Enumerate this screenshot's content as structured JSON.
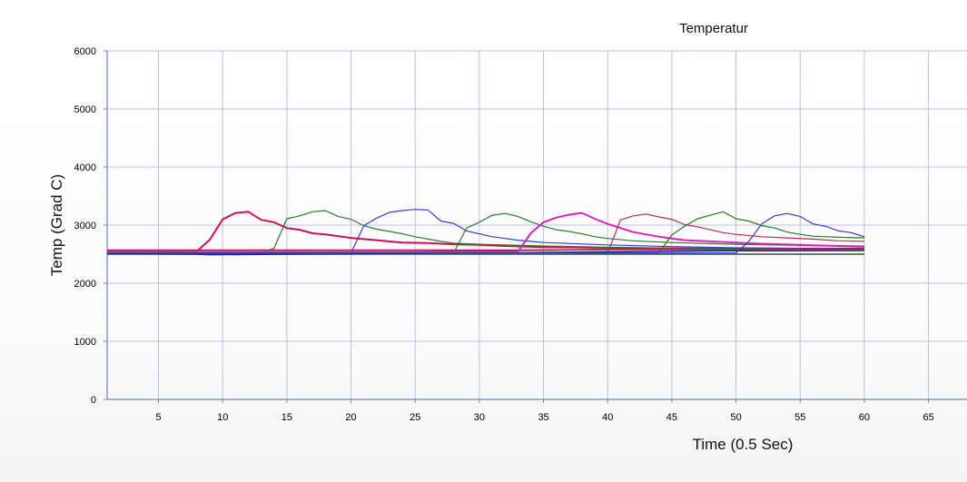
{
  "chart_data": {
    "type": "line",
    "title": "Temperatur",
    "xlabel": "Time (0.5 Sec)",
    "ylabel": "Temp (Grad C)",
    "xlim": [
      1,
      68
    ],
    "ylim": [
      0,
      6000
    ],
    "x_ticks": [
      5,
      10,
      15,
      20,
      25,
      30,
      35,
      40,
      45,
      50,
      55,
      60,
      65
    ],
    "y_ticks": [
      0,
      1000,
      2000,
      3000,
      4000,
      5000,
      6000
    ],
    "grid": true,
    "legend": "none",
    "series": [
      {
        "color": "#2f4f4f",
        "width": 1.5,
        "points": [
          [
            1,
            2500
          ],
          [
            60,
            2500
          ]
        ]
      },
      {
        "color": "#1f1f8f",
        "width": 1.5,
        "points": [
          [
            1,
            2510
          ],
          [
            8,
            2500
          ],
          [
            9,
            2490
          ],
          [
            15,
            2500
          ],
          [
            21,
            2510
          ],
          [
            30,
            2520
          ],
          [
            40,
            2540
          ],
          [
            50,
            2560
          ],
          [
            60,
            2560
          ]
        ]
      },
      {
        "color": "#6a2040",
        "width": 1.5,
        "points": [
          [
            1,
            2520
          ],
          [
            20,
            2530
          ],
          [
            30,
            2560
          ],
          [
            40,
            2580
          ],
          [
            50,
            2580
          ],
          [
            60,
            2560
          ]
        ]
      },
      {
        "color": "#cc1144",
        "width": 1.5,
        "points": [
          [
            1,
            2570
          ],
          [
            20,
            2570
          ],
          [
            33,
            2570
          ],
          [
            40,
            2580
          ],
          [
            50,
            2600
          ],
          [
            60,
            2600
          ]
        ]
      },
      {
        "color": "#d0104c",
        "width": 2,
        "points": [
          [
            1,
            2550
          ],
          [
            8,
            2550
          ],
          [
            9,
            2750
          ],
          [
            10,
            3100
          ],
          [
            11,
            3210
          ],
          [
            12,
            3230
          ],
          [
            13,
            3090
          ],
          [
            14,
            3050
          ],
          [
            15,
            2950
          ],
          [
            16,
            2920
          ],
          [
            17,
            2860
          ],
          [
            18,
            2840
          ],
          [
            20,
            2780
          ],
          [
            22,
            2740
          ],
          [
            24,
            2700
          ],
          [
            26,
            2690
          ],
          [
            28,
            2670
          ],
          [
            30,
            2660
          ],
          [
            32,
            2640
          ],
          [
            35,
            2620
          ],
          [
            40,
            2610
          ],
          [
            45,
            2600
          ],
          [
            50,
            2590
          ],
          [
            55,
            2580
          ],
          [
            60,
            2570
          ]
        ]
      },
      {
        "color": "#2a7a2a",
        "width": 1.2,
        "points": [
          [
            1,
            2520
          ],
          [
            13,
            2520
          ],
          [
            14,
            2600
          ],
          [
            15,
            3110
          ],
          [
            16,
            3160
          ],
          [
            17,
            3230
          ],
          [
            18,
            3250
          ],
          [
            19,
            3150
          ],
          [
            20,
            3100
          ],
          [
            21,
            2990
          ],
          [
            22,
            2930
          ],
          [
            23,
            2890
          ],
          [
            24,
            2850
          ],
          [
            25,
            2800
          ],
          [
            26,
            2760
          ],
          [
            27,
            2720
          ],
          [
            28,
            2690
          ],
          [
            30,
            2670
          ],
          [
            35,
            2640
          ],
          [
            40,
            2620
          ],
          [
            45,
            2600
          ],
          [
            50,
            2580
          ],
          [
            55,
            2570
          ],
          [
            60,
            2560
          ]
        ]
      },
      {
        "color": "#3a3ac8",
        "width": 1.2,
        "points": [
          [
            1,
            2520
          ],
          [
            20,
            2520
          ],
          [
            21,
            2990
          ],
          [
            22,
            3120
          ],
          [
            23,
            3220
          ],
          [
            24,
            3250
          ],
          [
            25,
            3270
          ],
          [
            26,
            3260
          ],
          [
            27,
            3070
          ],
          [
            28,
            3030
          ],
          [
            29,
            2900
          ],
          [
            30,
            2850
          ],
          [
            31,
            2800
          ],
          [
            32,
            2770
          ],
          [
            33,
            2740
          ],
          [
            34,
            2720
          ],
          [
            35,
            2700
          ],
          [
            40,
            2660
          ],
          [
            45,
            2630
          ],
          [
            50,
            2610
          ],
          [
            55,
            2600
          ],
          [
            60,
            2590
          ]
        ]
      },
      {
        "color": "#2a7a2a",
        "width": 1.2,
        "points": [
          [
            1,
            2520
          ],
          [
            28,
            2520
          ],
          [
            29,
            2950
          ],
          [
            30,
            3050
          ],
          [
            31,
            3170
          ],
          [
            32,
            3200
          ],
          [
            33,
            3150
          ],
          [
            34,
            3060
          ],
          [
            35,
            2980
          ],
          [
            36,
            2920
          ],
          [
            37,
            2890
          ],
          [
            38,
            2850
          ],
          [
            39,
            2800
          ],
          [
            40,
            2770
          ],
          [
            42,
            2730
          ],
          [
            45,
            2700
          ],
          [
            50,
            2670
          ],
          [
            55,
            2650
          ],
          [
            60,
            2640
          ]
        ]
      },
      {
        "color": "#dd22bb",
        "width": 2,
        "points": [
          [
            1,
            2540
          ],
          [
            33,
            2540
          ],
          [
            34,
            2860
          ],
          [
            35,
            3050
          ],
          [
            36,
            3130
          ],
          [
            37,
            3180
          ],
          [
            38,
            3210
          ],
          [
            39,
            3110
          ],
          [
            40,
            3020
          ],
          [
            41,
            2950
          ],
          [
            42,
            2880
          ],
          [
            43,
            2840
          ],
          [
            44,
            2800
          ],
          [
            45,
            2770
          ],
          [
            46,
            2740
          ],
          [
            48,
            2720
          ],
          [
            50,
            2700
          ],
          [
            52,
            2680
          ],
          [
            55,
            2660
          ],
          [
            58,
            2640
          ],
          [
            60,
            2630
          ]
        ]
      },
      {
        "color": "#b03050",
        "width": 1.2,
        "points": [
          [
            1,
            2520
          ],
          [
            40,
            2520
          ],
          [
            41,
            3090
          ],
          [
            42,
            3160
          ],
          [
            43,
            3190
          ],
          [
            44,
            3140
          ],
          [
            45,
            3100
          ],
          [
            46,
            3010
          ],
          [
            47,
            2970
          ],
          [
            48,
            2920
          ],
          [
            49,
            2870
          ],
          [
            50,
            2840
          ],
          [
            52,
            2800
          ],
          [
            54,
            2780
          ],
          [
            56,
            2760
          ],
          [
            58,
            2730
          ],
          [
            60,
            2720
          ]
        ]
      },
      {
        "color": "#2a7a2a",
        "width": 1.2,
        "points": [
          [
            1,
            2520
          ],
          [
            44,
            2520
          ],
          [
            45,
            2830
          ],
          [
            46,
            2980
          ],
          [
            47,
            3110
          ],
          [
            48,
            3170
          ],
          [
            49,
            3230
          ],
          [
            50,
            3110
          ],
          [
            51,
            3070
          ],
          [
            52,
            2990
          ],
          [
            53,
            2950
          ],
          [
            54,
            2880
          ],
          [
            55,
            2840
          ],
          [
            56,
            2810
          ],
          [
            58,
            2790
          ],
          [
            60,
            2780
          ]
        ]
      },
      {
        "color": "#3a3ac8",
        "width": 1.2,
        "points": [
          [
            1,
            2520
          ],
          [
            50,
            2520
          ],
          [
            51,
            2720
          ],
          [
            52,
            3020
          ],
          [
            53,
            3160
          ],
          [
            54,
            3200
          ],
          [
            55,
            3150
          ],
          [
            56,
            3020
          ],
          [
            57,
            2980
          ],
          [
            58,
            2900
          ],
          [
            59,
            2870
          ],
          [
            60,
            2800
          ]
        ]
      }
    ]
  }
}
